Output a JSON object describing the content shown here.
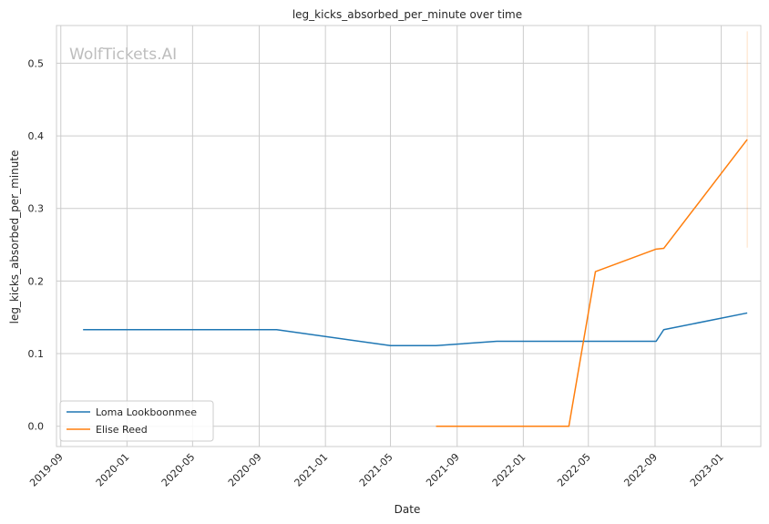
{
  "chart_data": {
    "type": "line",
    "title": "leg_kicks_absorbed_per_minute over time",
    "xlabel": "Date",
    "ylabel": "leg_kicks_absorbed_per_minute",
    "watermark": "WolfTickets.AI",
    "x_ticks": [
      "2019-09",
      "2020-01",
      "2020-05",
      "2020-09",
      "2021-01",
      "2021-05",
      "2021-09",
      "2022-01",
      "2022-05",
      "2022-09",
      "2023-01"
    ],
    "y_ticks": [
      0.0,
      0.1,
      0.2,
      0.3,
      0.4,
      0.5
    ],
    "y_tick_labels": [
      "0.0",
      "0.1",
      "0.2",
      "0.3",
      "0.4",
      "0.5"
    ],
    "xlim": [
      "2019-08-24",
      "2023-03-15"
    ],
    "ylim": [
      -0.028,
      0.552
    ],
    "grid": true,
    "legend_position": "lower-left",
    "series": [
      {
        "name": "Loma Lookboonmee",
        "color": "#1f77b4",
        "points": [
          {
            "x": "2019-10-12",
            "y": 0.133
          },
          {
            "x": "2020-10-03",
            "y": 0.133
          },
          {
            "x": "2021-05-01",
            "y": 0.111
          },
          {
            "x": "2021-07-24",
            "y": 0.111
          },
          {
            "x": "2021-11-13",
            "y": 0.117
          },
          {
            "x": "2022-09-03",
            "y": 0.117
          },
          {
            "x": "2022-09-17",
            "y": 0.133
          },
          {
            "x": "2023-02-18",
            "y": 0.156
          }
        ]
      },
      {
        "name": "Elise Reed",
        "color": "#ff7f0e",
        "points": [
          {
            "x": "2021-07-24",
            "y": 0.0
          },
          {
            "x": "2022-03-26",
            "y": 0.0
          },
          {
            "x": "2022-05-14",
            "y": 0.213
          },
          {
            "x": "2022-09-03",
            "y": 0.244
          },
          {
            "x": "2022-09-17",
            "y": 0.245
          },
          {
            "x": "2023-02-18",
            "y": 0.395
          }
        ],
        "error_band": {
          "x": "2023-02-18",
          "low": 0.246,
          "high": 0.544
        }
      }
    ]
  }
}
